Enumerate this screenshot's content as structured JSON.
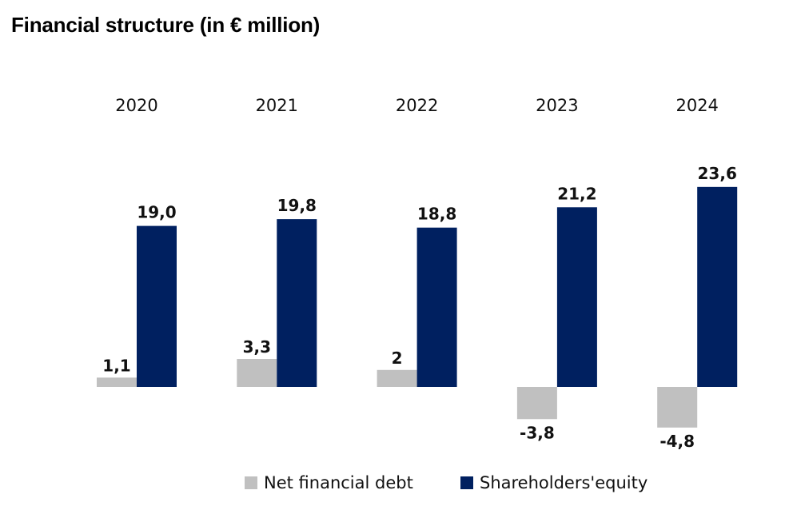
{
  "chart_data": {
    "type": "bar",
    "title": "Financial structure (in € million)",
    "categories": [
      "2020",
      "2021",
      "2022",
      "2023",
      "2024"
    ],
    "series": [
      {
        "name": "Net financial debt",
        "color": "#c0c0c0",
        "values": [
          1.1,
          3.3,
          2,
          -3.8,
          -4.8
        ],
        "labels": [
          "1,1",
          "3,3",
          "2",
          "-3,8",
          "-4,8"
        ]
      },
      {
        "name": "Shareholders'equity",
        "color": "#002060",
        "values": [
          19.0,
          19.8,
          18.8,
          21.2,
          23.6
        ],
        "labels": [
          "19,0",
          "19,8",
          "18,8",
          "21,2",
          "23,6"
        ]
      }
    ],
    "category_axis_position": "top",
    "legend_position": "bottom",
    "grid": false,
    "xlabel": "",
    "ylabel": ""
  }
}
